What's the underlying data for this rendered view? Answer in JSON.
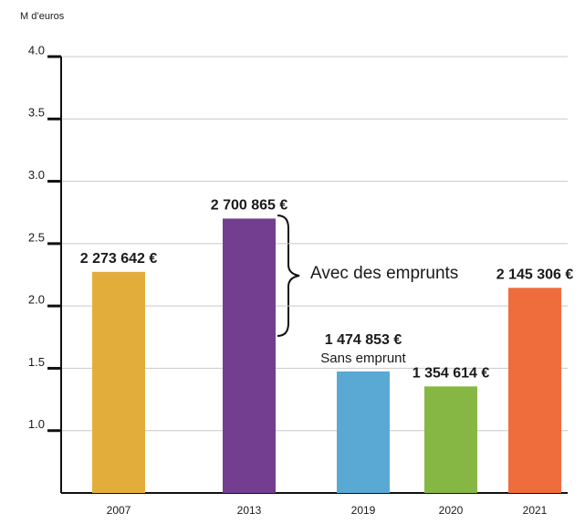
{
  "chart_data": {
    "type": "bar",
    "y_axis_label": "M d’euros",
    "categories": [
      "2007",
      "2013",
      "2019",
      "2020",
      "2021"
    ],
    "values": [
      2.273642,
      2.700865,
      1.474853,
      1.354614,
      2.145306
    ],
    "value_labels": [
      "2 273 642 €",
      "2 700 865 €",
      "1 474 853 €",
      "1 354 614 €",
      "2 145 306 €"
    ],
    "colors": [
      "#e3ad3c",
      "#733e8f",
      "#5aa9d4",
      "#86b744",
      "#ef6c3c"
    ],
    "annotations": [
      "Avec des emprunts",
      "Sans emprunt"
    ],
    "ylim": [
      0.5,
      4.0
    ],
    "yticks": [
      {
        "value": 1,
        "label": "1.0"
      },
      1.5,
      {
        "value": 2,
        "label": "2.0"
      },
      2.5,
      {
        "value": 3,
        "label": "3.0"
      },
      3.5,
      {
        "value": 4,
        "label": "4.0"
      }
    ],
    "grid": true
  }
}
